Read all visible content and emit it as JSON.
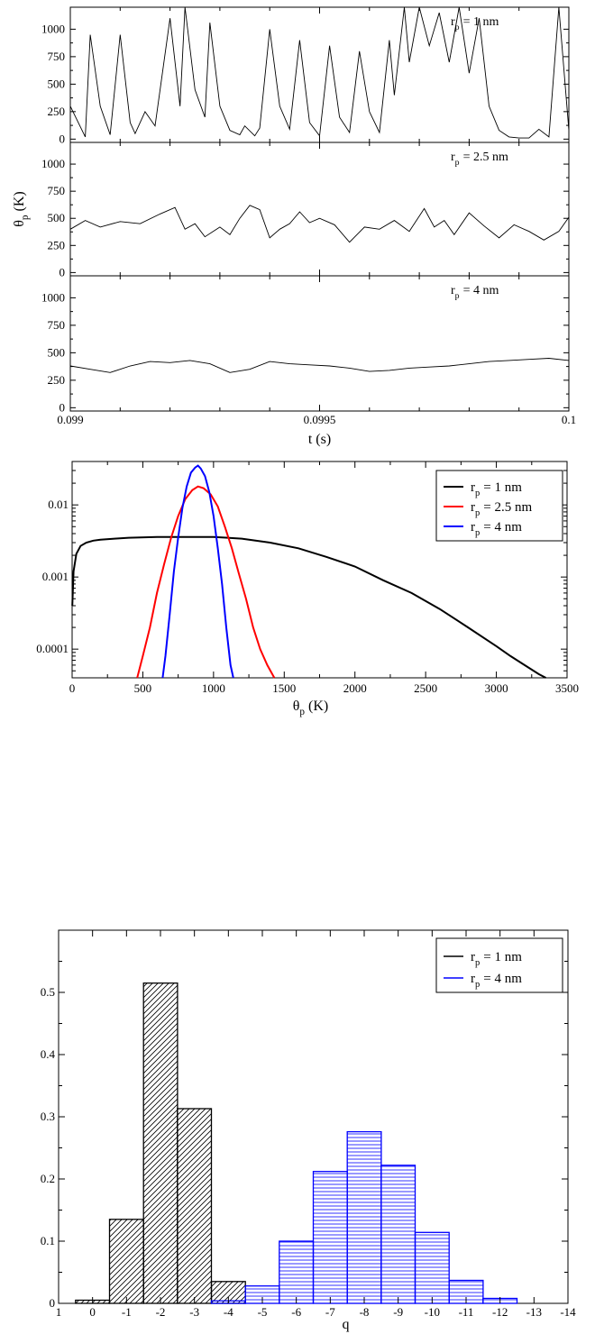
{
  "chart_data": [
    {
      "type": "line",
      "xlabel": "t (s)",
      "ylabel_main": "θ",
      "ylabel_sub": "p",
      "ylabel_unit": "(K)",
      "xlim": [
        0.099,
        0.1
      ],
      "x_ticks": [
        "0.099",
        "0.0995",
        "0.1"
      ],
      "panels": [
        {
          "label_main": "r",
          "label_sub": "p",
          "label_rest": "= 1 nm",
          "ylim": [
            -30,
            1200
          ],
          "y_ticks": [
            "0",
            "250",
            "500",
            "750",
            "1000"
          ],
          "series": [
            {
              "name": "r_p = 1 nm",
              "x": [
                0.099,
                0.09903,
                0.09904,
                0.09906,
                0.09908,
                0.0991,
                0.09912,
                0.09913,
                0.09915,
                0.09917,
                0.0992,
                0.09922,
                0.09923,
                0.09925,
                0.09927,
                0.09928,
                0.0993,
                0.09932,
                0.09934,
                0.09935,
                0.09937,
                0.09938,
                0.0994,
                0.09942,
                0.09944,
                0.09946,
                0.09948,
                0.0995,
                0.09952,
                0.09954,
                0.09956,
                0.09958,
                0.0996,
                0.09962,
                0.09964,
                0.09965,
                0.09967,
                0.09968,
                0.0997,
                0.09972,
                0.09974,
                0.09976,
                0.09978,
                0.0998,
                0.09982,
                0.09984,
                0.09986,
                0.09988,
                0.0999,
                0.09992,
                0.09994,
                0.09996,
                0.09998,
                0.1
              ],
              "y": [
                300,
                20,
                950,
                300,
                40,
                950,
                150,
                50,
                250,
                120,
                1100,
                300,
                1200,
                450,
                200,
                1060,
                300,
                80,
                40,
                120,
                30,
                100,
                1000,
                300,
                90,
                900,
                150,
                30,
                850,
                200,
                60,
                800,
                250,
                60,
                900,
                400,
                1200,
                700,
                1200,
                850,
                1150,
                700,
                1200,
                600,
                1100,
                300,
                80,
                20,
                10,
                10,
                90,
                20,
                1200,
                80
              ]
            }
          ]
        },
        {
          "label_main": "r",
          "label_sub": "p",
          "label_rest": "= 2.5 nm",
          "ylim": [
            -30,
            1200
          ],
          "y_ticks": [
            "0",
            "250",
            "500",
            "750",
            "1000"
          ],
          "series": [
            {
              "name": "r_p = 2.5 nm",
              "x": [
                0.099,
                0.09903,
                0.09906,
                0.0991,
                0.09914,
                0.09918,
                0.09921,
                0.09923,
                0.09925,
                0.09927,
                0.0993,
                0.09932,
                0.09934,
                0.09936,
                0.09938,
                0.0994,
                0.09942,
                0.09944,
                0.09946,
                0.09948,
                0.0995,
                0.09953,
                0.09956,
                0.09959,
                0.09962,
                0.09965,
                0.09968,
                0.09971,
                0.09973,
                0.09975,
                0.09977,
                0.0998,
                0.09983,
                0.09986,
                0.09989,
                0.09992,
                0.09995,
                0.09998,
                0.1
              ],
              "y": [
                400,
                480,
                420,
                470,
                450,
                540,
                600,
                400,
                450,
                330,
                420,
                350,
                500,
                620,
                580,
                320,
                400,
                450,
                560,
                460,
                500,
                440,
                280,
                420,
                400,
                480,
                380,
                590,
                420,
                480,
                350,
                550,
                430,
                320,
                440,
                380,
                300,
                380,
                510
              ]
            }
          ]
        },
        {
          "label_main": "r",
          "label_sub": "p",
          "label_rest": "= 4 nm",
          "ylim": [
            -30,
            1200
          ],
          "y_ticks": [
            "0",
            "250",
            "500",
            "750",
            "1000"
          ],
          "series": [
            {
              "name": "r_p = 4 nm",
              "x": [
                0.099,
                0.09904,
                0.09908,
                0.09912,
                0.09916,
                0.0992,
                0.09924,
                0.09928,
                0.09932,
                0.09936,
                0.0994,
                0.09944,
                0.09948,
                0.09952,
                0.09956,
                0.0996,
                0.09964,
                0.09968,
                0.09972,
                0.09976,
                0.0998,
                0.09984,
                0.09988,
                0.09992,
                0.09996,
                0.1
              ],
              "y": [
                380,
                350,
                320,
                380,
                420,
                410,
                430,
                400,
                320,
                350,
                420,
                400,
                390,
                380,
                360,
                330,
                340,
                360,
                370,
                380,
                400,
                420,
                430,
                440,
                450,
                430
              ]
            }
          ]
        }
      ]
    },
    {
      "type": "line",
      "log_y": true,
      "xlabel_main": "θ",
      "xlabel_sub": "p",
      "xlabel_unit": "(K)",
      "xlim": [
        0,
        3500
      ],
      "ylim": [
        4e-05,
        0.04
      ],
      "x_ticks": [
        "0",
        "500",
        "1000",
        "1500",
        "2000",
        "2500",
        "3000",
        "3500"
      ],
      "y_ticks": [
        {
          "value": 0.0001,
          "label": "0.0001"
        },
        {
          "value": 0.001,
          "label": "0.001"
        },
        {
          "value": 0.01,
          "label": "0.01"
        }
      ],
      "legend_placement": "top-right",
      "series": [
        {
          "name": "r_p = 1 nm",
          "name_main": "r",
          "name_sub": "p",
          "name_rest": "= 1 nm",
          "color": "#000000",
          "x": [
            1,
            10,
            30,
            60,
            100,
            150,
            200,
            300,
            400,
            600,
            800,
            1000,
            1200,
            1400,
            1600,
            1800,
            2000,
            2200,
            2400,
            2600,
            2800,
            3000,
            3100,
            3200,
            3300,
            3350
          ],
          "y": [
            0.0004,
            0.0012,
            0.0021,
            0.0027,
            0.003,
            0.0032,
            0.0033,
            0.0034,
            0.0035,
            0.0036,
            0.0036,
            0.0036,
            0.0034,
            0.003,
            0.0025,
            0.0019,
            0.0014,
            0.0009,
            0.0006,
            0.00036,
            0.0002,
            0.00011,
            8e-05,
            6e-05,
            4.5e-05,
            4e-05
          ]
        },
        {
          "name": "r_p = 2.5 nm",
          "name_main": "r",
          "name_sub": "p",
          "name_rest": "= 2.5 nm",
          "color": "#ff0000",
          "x": [
            460,
            500,
            550,
            600,
            650,
            700,
            750,
            800,
            850,
            890,
            930,
            980,
            1030,
            1080,
            1130,
            1180,
            1230,
            1280,
            1330,
            1380,
            1430
          ],
          "y": [
            4e-05,
            8e-05,
            0.0002,
            0.0006,
            0.0015,
            0.0035,
            0.007,
            0.012,
            0.016,
            0.018,
            0.017,
            0.014,
            0.0095,
            0.005,
            0.0025,
            0.0011,
            0.0005,
            0.0002,
            0.0001,
            6e-05,
            4e-05
          ]
        },
        {
          "name": "r_p = 4 nm",
          "name_main": "r",
          "name_sub": "p",
          "name_rest": "= 4 nm",
          "color": "#0000ff",
          "x": [
            640,
            660,
            690,
            720,
            750,
            780,
            810,
            840,
            870,
            890,
            910,
            940,
            970,
            1000,
            1030,
            1060,
            1090,
            1120,
            1140
          ],
          "y": [
            4e-05,
            8e-05,
            0.0003,
            0.0012,
            0.0035,
            0.009,
            0.018,
            0.028,
            0.033,
            0.035,
            0.032,
            0.025,
            0.015,
            0.007,
            0.0025,
            0.0008,
            0.0002,
            6e-05,
            4e-05
          ]
        }
      ]
    },
    {
      "type": "bar",
      "xlabel": "q",
      "xlim": [
        1,
        -14
      ],
      "ylim": [
        0,
        0.6
      ],
      "x_ticks": [
        "1",
        "0",
        "-1",
        "-2",
        "-3",
        "-4",
        "-5",
        "-6",
        "-7",
        "-8",
        "-9",
        "-10",
        "-11",
        "-12",
        "-13",
        "-14"
      ],
      "y_ticks": [
        "0",
        "0.1",
        "0.2",
        "0.3",
        "0.4",
        "0.5"
      ],
      "legend_placement": "top-right",
      "series": [
        {
          "name": "r_p = 1 nm",
          "name_main": "r",
          "name_sub": "p",
          "name_rest": "= 1 nm",
          "color": "#000000",
          "hatch": "diagonal",
          "q": [
            0,
            -1,
            -2,
            -3,
            -4
          ],
          "values": [
            0.005,
            0.135,
            0.515,
            0.313,
            0.035
          ]
        },
        {
          "name": "r_p = 4 nm",
          "name_main": "r",
          "name_sub": "p",
          "name_rest": "= 4 nm",
          "color": "#0000ff",
          "hatch": "horizontal",
          "q": [
            -4,
            -5,
            -6,
            -7,
            -8,
            -9,
            -10,
            -11,
            -12
          ],
          "values": [
            0.004,
            0.028,
            0.1,
            0.212,
            0.276,
            0.222,
            0.114,
            0.037,
            0.008
          ]
        }
      ]
    }
  ]
}
